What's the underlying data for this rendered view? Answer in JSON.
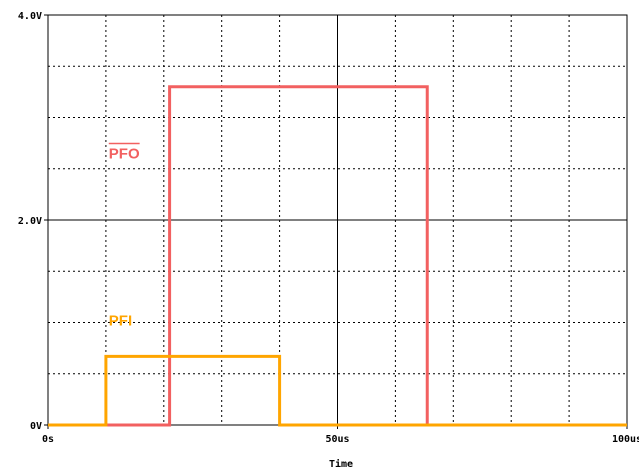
{
  "chart_data": {
    "type": "line",
    "title": "",
    "xlabel": "Time",
    "ylabel": "",
    "x_unit": "us",
    "y_unit": "V",
    "xlim": [
      0,
      100
    ],
    "ylim": [
      0,
      4
    ],
    "x_ticks": [
      {
        "value": 0,
        "label": "0s"
      },
      {
        "value": 50,
        "label": "50us"
      },
      {
        "value": 100,
        "label": "100us"
      }
    ],
    "y_ticks": [
      {
        "value": 0,
        "label": "0V"
      },
      {
        "value": 2,
        "label": "2.0V"
      },
      {
        "value": 4,
        "label": "4.0V"
      }
    ],
    "grid": true,
    "series": [
      {
        "name": "PFO",
        "overline": true,
        "color": "#f26060",
        "x": [
          0,
          21,
          21,
          65.5,
          65.5,
          100
        ],
        "y": [
          0,
          0,
          3.3,
          3.3,
          0,
          0
        ],
        "label_position": {
          "x": 10.5,
          "y": 2.6
        }
      },
      {
        "name": "PFI",
        "overline": false,
        "color": "#ffa500",
        "x": [
          0,
          10,
          10,
          40,
          40,
          100
        ],
        "y": [
          0,
          0,
          0.67,
          0.67,
          0,
          0
        ],
        "label_position": {
          "x": 10.5,
          "y": 0.97
        }
      }
    ]
  }
}
